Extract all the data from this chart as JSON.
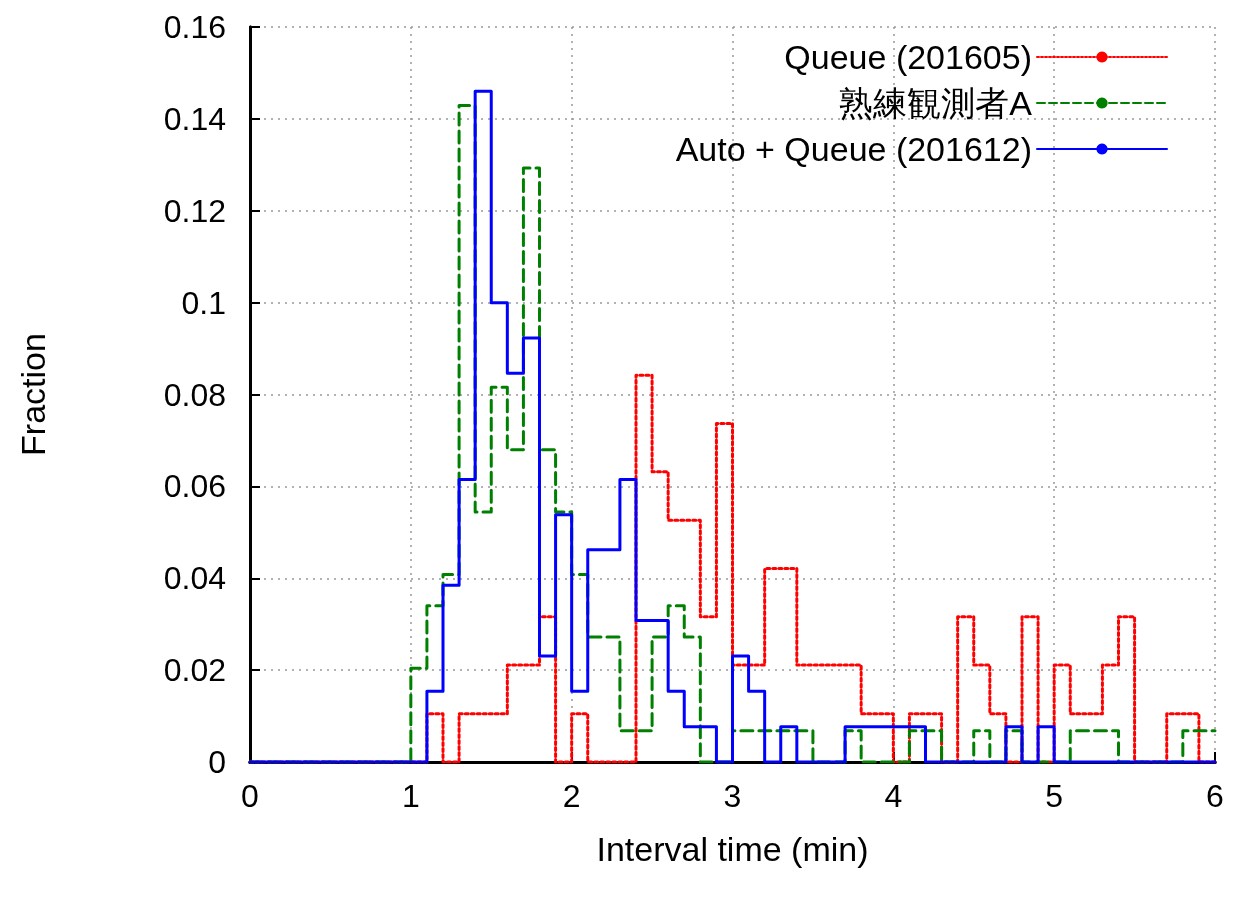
{
  "chart_data": {
    "type": "histogram",
    "xlabel": "Interval time (min)",
    "ylabel": "Fraction",
    "bins": [
      0,
      0.1,
      0.2,
      0.3,
      0.4,
      0.5,
      0.6,
      0.7,
      0.8,
      0.9,
      1,
      1.1,
      1.2,
      1.3,
      1.4,
      1.5,
      1.6,
      1.7,
      1.8,
      1.9,
      2,
      2.1,
      2.2,
      2.3,
      2.4,
      2.5,
      2.6,
      2.7,
      2.8,
      2.9,
      3,
      3.1,
      3.2,
      3.3,
      3.4,
      3.5,
      3.6,
      3.7,
      3.8,
      3.9,
      4,
      4.1,
      4.2,
      4.3,
      4.4,
      4.5,
      4.6,
      4.7,
      4.8,
      4.9,
      5,
      5.1,
      5.2,
      5.3,
      5.4,
      5.5,
      5.6,
      5.7,
      5.8,
      5.9,
      6
    ],
    "series": [
      {
        "name": "Queue (201605)",
        "color": "#ff0000",
        "line_style": "dotted",
        "values": [
          0,
          0,
          0,
          0,
          0,
          0,
          0,
          0,
          0,
          0,
          0,
          0.0105,
          0,
          0.0105,
          0.0105,
          0.0105,
          0.0211,
          0.0211,
          0.0316,
          0,
          0.0105,
          0,
          0,
          0,
          0.0842,
          0.0632,
          0.0526,
          0.0526,
          0.0316,
          0.0737,
          0.0211,
          0.0211,
          0.0421,
          0.0421,
          0.0211,
          0.0211,
          0.0211,
          0.0211,
          0.0105,
          0.0105,
          0,
          0.0105,
          0.0105,
          0,
          0.0316,
          0.0211,
          0.0105,
          0,
          0.0316,
          0,
          0.0211,
          0.0105,
          0.0105,
          0.0211,
          0.0316,
          0,
          0,
          0.0105,
          0.0105,
          0
        ]
      },
      {
        "name": "熟練観測者A",
        "color": "#008000",
        "line_style": "dashed",
        "values": [
          0,
          0,
          0,
          0,
          0,
          0,
          0,
          0,
          0,
          0,
          0.0204,
          0.034,
          0.0408,
          0.1429,
          0.0544,
          0.0816,
          0.068,
          0.1293,
          0.068,
          0.0544,
          0.0408,
          0.0272,
          0.0272,
          0.0068,
          0.0068,
          0.0272,
          0.034,
          0.0272,
          0,
          0,
          0.0068,
          0.0068,
          0.0068,
          0.0068,
          0.0068,
          0,
          0,
          0.0068,
          0,
          0,
          0,
          0.0068,
          0.0068,
          0,
          0,
          0.0068,
          0,
          0.0068,
          0,
          0,
          0,
          0.0068,
          0.0068,
          0.0068,
          0,
          0,
          0,
          0,
          0.0068,
          0.0068
        ]
      },
      {
        "name": "Auto + Queue (201612)",
        "color": "#0000ff",
        "line_style": "solid",
        "values": [
          0,
          0,
          0,
          0,
          0,
          0,
          0,
          0,
          0,
          0,
          0,
          0.0154,
          0.0385,
          0.0615,
          0.146,
          0.1,
          0.0846,
          0.0923,
          0.0231,
          0.0538,
          0.0154,
          0.0462,
          0.0462,
          0.0615,
          0.0308,
          0.0308,
          0.0154,
          0.0077,
          0.0077,
          0,
          0.0231,
          0.0154,
          0,
          0.0077,
          0,
          0,
          0,
          0.0077,
          0.0077,
          0.0077,
          0.0077,
          0.0077,
          0,
          0,
          0,
          0,
          0,
          0.0077,
          0,
          0.0077,
          0,
          0,
          0,
          0,
          0,
          0,
          0,
          0,
          0,
          0
        ]
      }
    ],
    "xlim": [
      0,
      6
    ],
    "xticks": [
      0,
      1,
      2,
      3,
      4,
      5,
      6
    ],
    "ylim": [
      0,
      0.16
    ],
    "yticks": [
      0,
      0.02,
      0.04,
      0.06,
      0.08,
      0.1,
      0.12,
      0.14,
      0.16
    ],
    "grid": true,
    "legend": "top right"
  }
}
